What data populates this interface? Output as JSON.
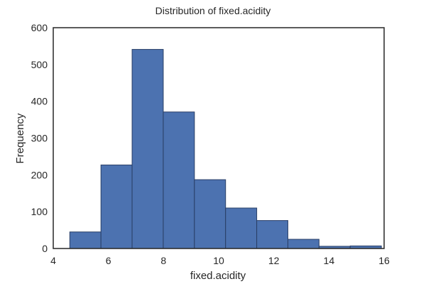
{
  "chart_data": {
    "type": "bar",
    "title": "Distribution of fixed.acidity",
    "xlabel": "fixed.acidity",
    "ylabel": "Frequency",
    "xlim": [
      4,
      16
    ],
    "ylim": [
      0,
      600
    ],
    "xticks": [
      "4",
      "6",
      "8",
      "10",
      "12",
      "14",
      "16"
    ],
    "yticks": [
      "0",
      "100",
      "200",
      "300",
      "400",
      "500",
      "600"
    ],
    "bins": [
      {
        "x0": 4.6,
        "x1": 5.73,
        "value": 45
      },
      {
        "x0": 5.73,
        "x1": 6.86,
        "value": 227
      },
      {
        "x0": 6.86,
        "x1": 7.99,
        "value": 541
      },
      {
        "x0": 7.99,
        "x1": 9.12,
        "value": 371
      },
      {
        "x0": 9.12,
        "x1": 10.25,
        "value": 187
      },
      {
        "x0": 10.25,
        "x1": 11.38,
        "value": 110
      },
      {
        "x0": 11.38,
        "x1": 12.51,
        "value": 76
      },
      {
        "x0": 12.51,
        "x1": 13.64,
        "value": 25
      },
      {
        "x0": 13.64,
        "x1": 14.77,
        "value": 6
      },
      {
        "x0": 14.77,
        "x1": 15.9,
        "value": 7
      }
    ],
    "grid": false,
    "colors": {
      "bar": "#4c72b0",
      "edge": "#2a3f66",
      "axis": "#262626"
    }
  }
}
